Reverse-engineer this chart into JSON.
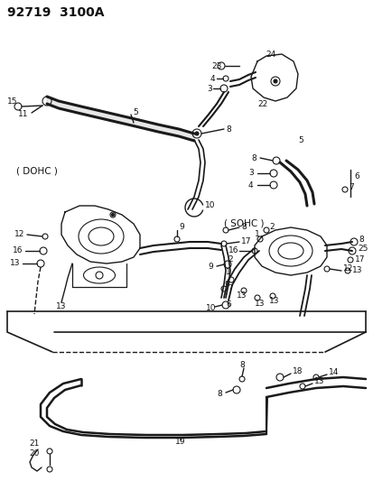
{
  "title": "92719  3100A",
  "bg_color": "#ffffff",
  "line_color": "#1a1a1a",
  "text_color": "#111111",
  "fig_width": 4.14,
  "fig_height": 5.33,
  "dpi": 100,
  "dohc_label": "( DOHC )",
  "sohc_label": "( SOHC )"
}
